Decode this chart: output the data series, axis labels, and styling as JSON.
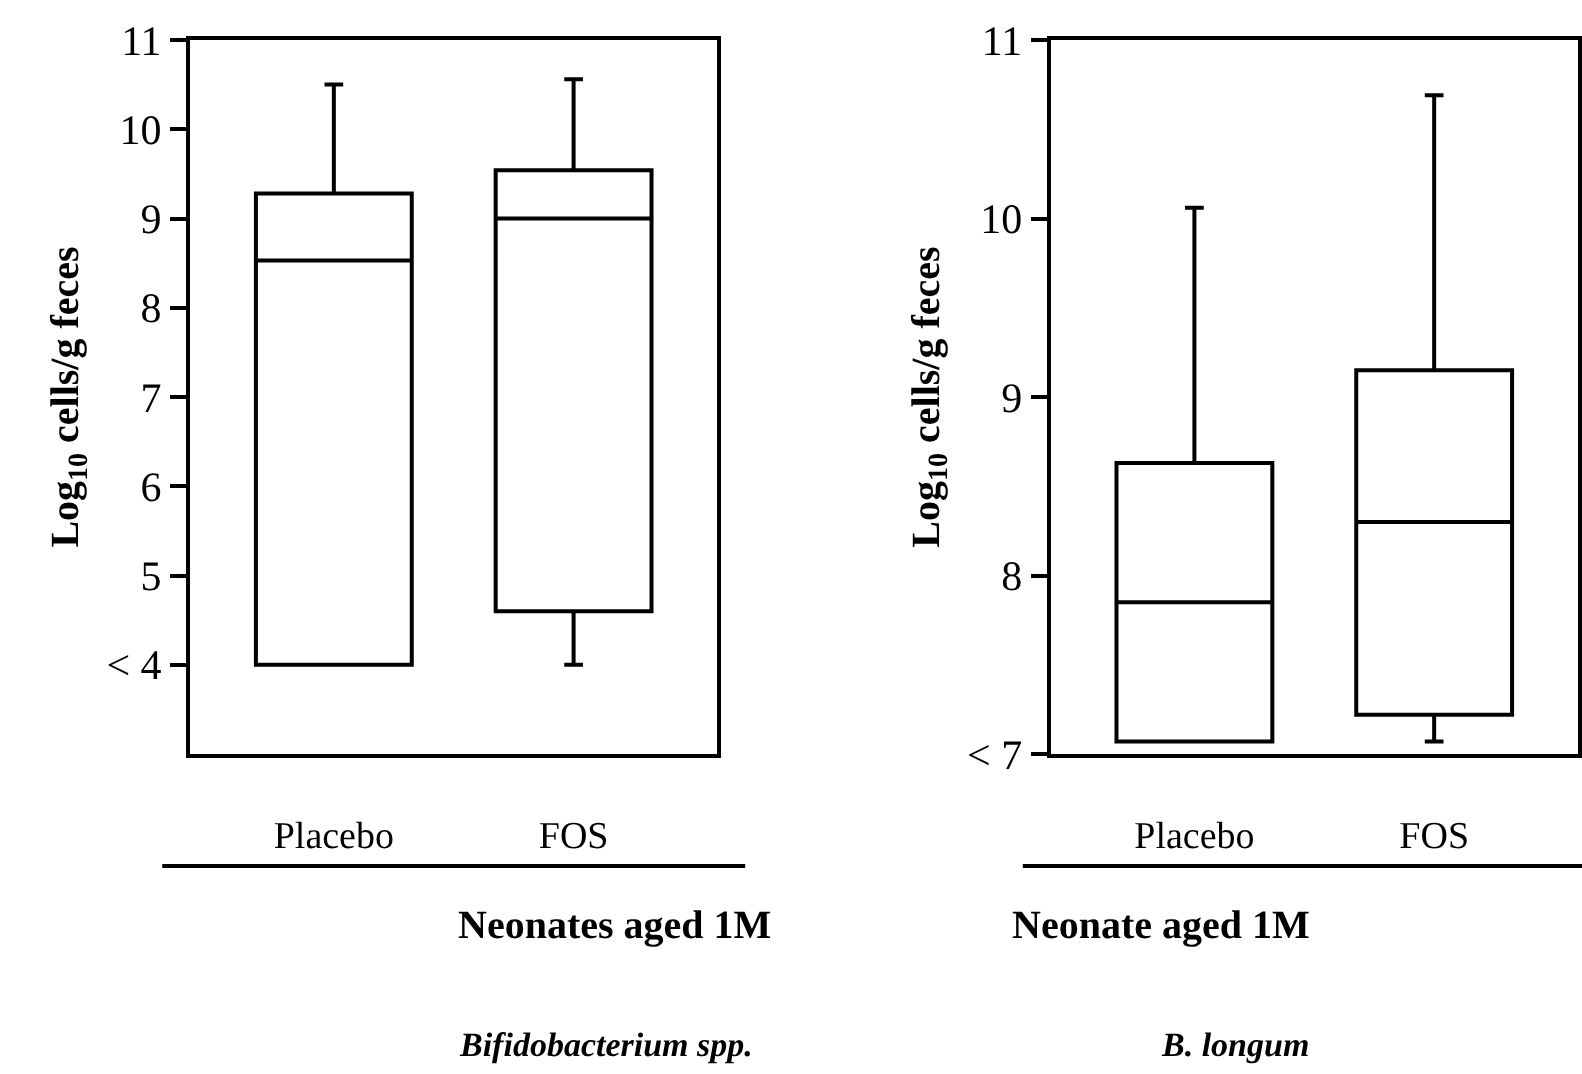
{
  "chart_data": [
    {
      "type": "box",
      "title": "Bifidobacterium spp.",
      "xlabel": "Neonates aged 1M",
      "ylabel": "Log$_{10}$ cells/g feces",
      "categories": [
        "Placebo",
        "FOS"
      ],
      "color": "#000000",
      "boxes": [
        {
          "low": 4.0,
          "q1": 4.0,
          "median": 8.53,
          "q3": 9.28,
          "high": 10.5
        },
        {
          "low": 4.0,
          "q1": 4.6,
          "median": 9.0,
          "q3": 9.54,
          "high": 10.56
        }
      ],
      "ylim": [
        3,
        11
      ],
      "yticks": [
        {
          "value": 4,
          "label": "< 4"
        },
        5,
        6,
        7,
        8,
        9,
        10,
        11
      ]
    },
    {
      "type": "box",
      "title": "B. longum",
      "xlabel": "Neonate aged 1M",
      "ylabel": "Log$_{10}$ cells/g feces",
      "categories": [
        "Placebo",
        "FOS"
      ],
      "color": "#000000",
      "boxes": [
        {
          "low": 7.07,
          "q1": 7.07,
          "median": 7.85,
          "q3": 8.63,
          "high": 10.06
        },
        {
          "low": 7.07,
          "q1": 7.22,
          "median": 8.3,
          "q3": 9.15,
          "high": 10.69
        }
      ],
      "ylim": [
        7,
        11
      ],
      "yticks": [
        {
          "value": 7,
          "label": "< 7"
        },
        8,
        9,
        10,
        11
      ]
    }
  ]
}
